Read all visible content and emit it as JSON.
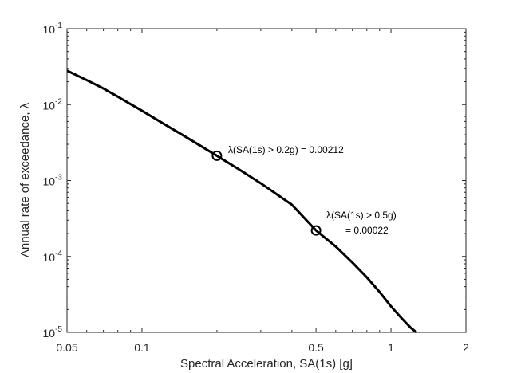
{
  "chart_data": {
    "type": "line",
    "xlabel": "Spectral Acceleration, SA(1s) [g]",
    "ylabel": "Annual rate of exceedance, λ",
    "x_scale": "log",
    "y_scale": "log",
    "xlim": [
      0.05,
      2
    ],
    "ylim": [
      1e-05,
      0.1
    ],
    "x_ticks": [
      0.05,
      0.1,
      0.5,
      1,
      2
    ],
    "x_tick_labels": [
      "0.05",
      "0.1",
      "0.5",
      "1",
      "2"
    ],
    "y_ticks": [
      1e-05,
      0.0001,
      0.001,
      0.01,
      0.1
    ],
    "y_tick_labels": [
      {
        "base": "10",
        "exp": "-5"
      },
      {
        "base": "10",
        "exp": "-4"
      },
      {
        "base": "10",
        "exp": "-3"
      },
      {
        "base": "10",
        "exp": "-2"
      },
      {
        "base": "10",
        "exp": "-1"
      }
    ],
    "grid": false,
    "series": [
      {
        "color": "#000000",
        "x": [
          0.05,
          0.06,
          0.07,
          0.08,
          0.1,
          0.12,
          0.15,
          0.2,
          0.25,
          0.3,
          0.4,
          0.5,
          0.6,
          0.7,
          0.8,
          0.9,
          1.0,
          1.1,
          1.2,
          1.27
        ],
        "y": [
          0.028,
          0.021,
          0.0163,
          0.0127,
          0.0083,
          0.0058,
          0.00375,
          0.00212,
          0.00135,
          0.00092,
          0.00048,
          0.00022,
          0.000135,
          8.3e-05,
          5.3e-05,
          3.4e-05,
          2.2e-05,
          1.55e-05,
          1.15e-05,
          9.9e-06
        ]
      }
    ],
    "markers": [
      {
        "x": 0.2,
        "y": 0.00212
      },
      {
        "x": 0.5,
        "y": 0.00022
      }
    ],
    "annotations": [
      {
        "lines": [
          "λ(SA(1s) > 0.2g) = 0.00212"
        ]
      },
      {
        "lines": [
          "λ(SA(1s) > 0.5g)",
          "= 0.00022"
        ]
      }
    ]
  }
}
